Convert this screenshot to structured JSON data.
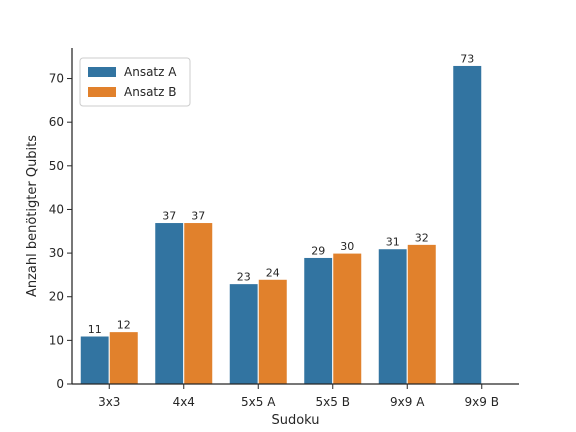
{
  "chart_data": {
    "type": "bar",
    "title": "",
    "xlabel": "Sudoku",
    "ylabel": "Anzahl benötigter Qubits",
    "categories": [
      "3x3",
      "4x4",
      "5x5 A",
      "5x5 B",
      "9x9 A",
      "9x9 B"
    ],
    "ylim": [
      0,
      77
    ],
    "yticks": [
      0,
      10,
      20,
      30,
      40,
      50,
      60,
      70
    ],
    "grid": false,
    "legend_position": "top-left",
    "series": [
      {
        "name": "Ansatz A",
        "color": "#3274a1",
        "values": [
          11,
          37,
          23,
          29,
          31,
          73
        ]
      },
      {
        "name": "Ansatz B",
        "color": "#e1812c",
        "values": [
          12,
          37,
          24,
          30,
          32,
          null
        ]
      }
    ]
  }
}
